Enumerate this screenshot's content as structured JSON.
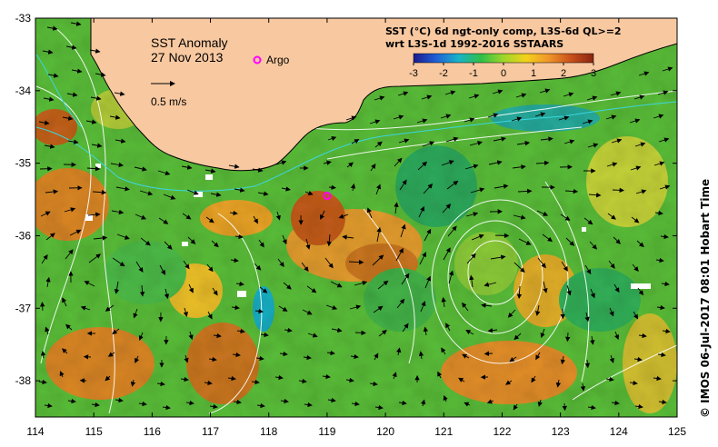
{
  "map": {
    "title": "SST Anomaly",
    "date": "27 Nov 2013",
    "argo_label": "Argo",
    "scale_label": "0.5 m/s",
    "colorbar": {
      "title_line1": "SST (°C) 6d ngt-only comp, L3S-6d QL>=2",
      "title_line2": "wrt L3S-1d 1992-2016 SSTAARS",
      "ticks": [
        "-3",
        "-2",
        "-1",
        "0",
        "1",
        "2",
        "3"
      ],
      "colors": [
        "#1a1a8c",
        "#1f5fd6",
        "#19b3c8",
        "#2fbf48",
        "#9ed62a",
        "#f2d21b",
        "#f0962a",
        "#c8501a",
        "#8a2410"
      ]
    },
    "credit": "© IMOS 06-Jul-2017 08:01 Hobart Time",
    "lon_ticks": [
      "114",
      "115",
      "116",
      "117",
      "118",
      "119",
      "120",
      "121",
      "122",
      "123",
      "124",
      "125"
    ],
    "lat_ticks": [
      "-33",
      "-34",
      "-35",
      "-36",
      "-37",
      "-38"
    ],
    "extent": {
      "lon": [
        114,
        125
      ],
      "lat": [
        -38.5,
        -33
      ]
    },
    "land_color": "#f8c8a0",
    "argo_position": {
      "lon": 119.0,
      "lat": -35.45
    }
  }
}
